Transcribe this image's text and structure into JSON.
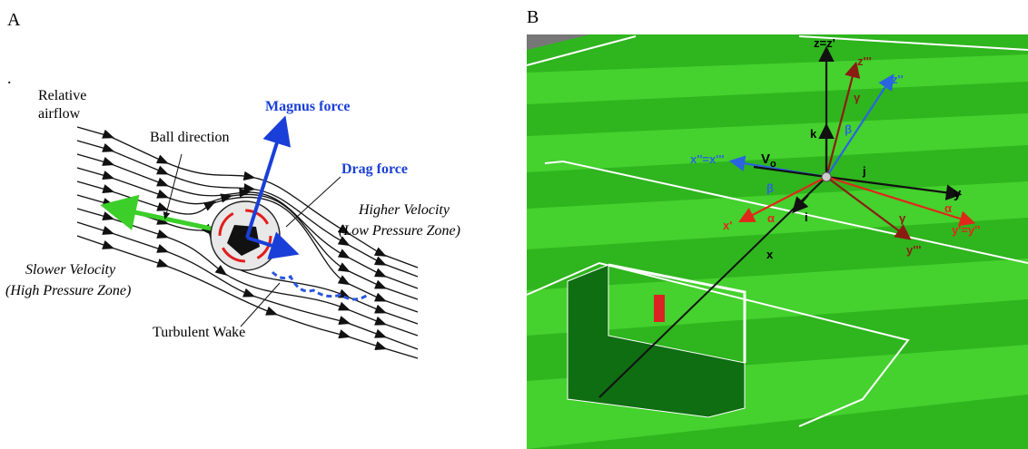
{
  "panel_a": {
    "label": "A",
    "dot": ".",
    "relative_airflow": [
      "Relative",
      "airflow"
    ],
    "ball_direction": "Ball direction",
    "magnus_force": "Magnus force",
    "drag_force": "Drag force",
    "higher_velocity": [
      "Higher Velocity",
      "(Low Pressure Zone)"
    ],
    "slower_velocity": [
      "Slower Velocity",
      "(High Pressure Zone)"
    ],
    "turbulent_wake": "Turbulent Wake"
  },
  "panel_b": {
    "label": "B",
    "axes": {
      "z": "z=z'",
      "z3": "z'''",
      "z2": "z''",
      "gamma_top": "γ",
      "beta_top": "β",
      "k": "k",
      "x2": "x''=x'''",
      "v": "V",
      "v_sub": "o",
      "j": "j",
      "y": "y",
      "beta_left": "β",
      "x1": "x'",
      "alpha_left": "α",
      "i": "i",
      "alpha_right": "α",
      "gamma_right": "γ",
      "y1": "y'=y''",
      "y3": "y'''",
      "x": "x"
    }
  }
}
